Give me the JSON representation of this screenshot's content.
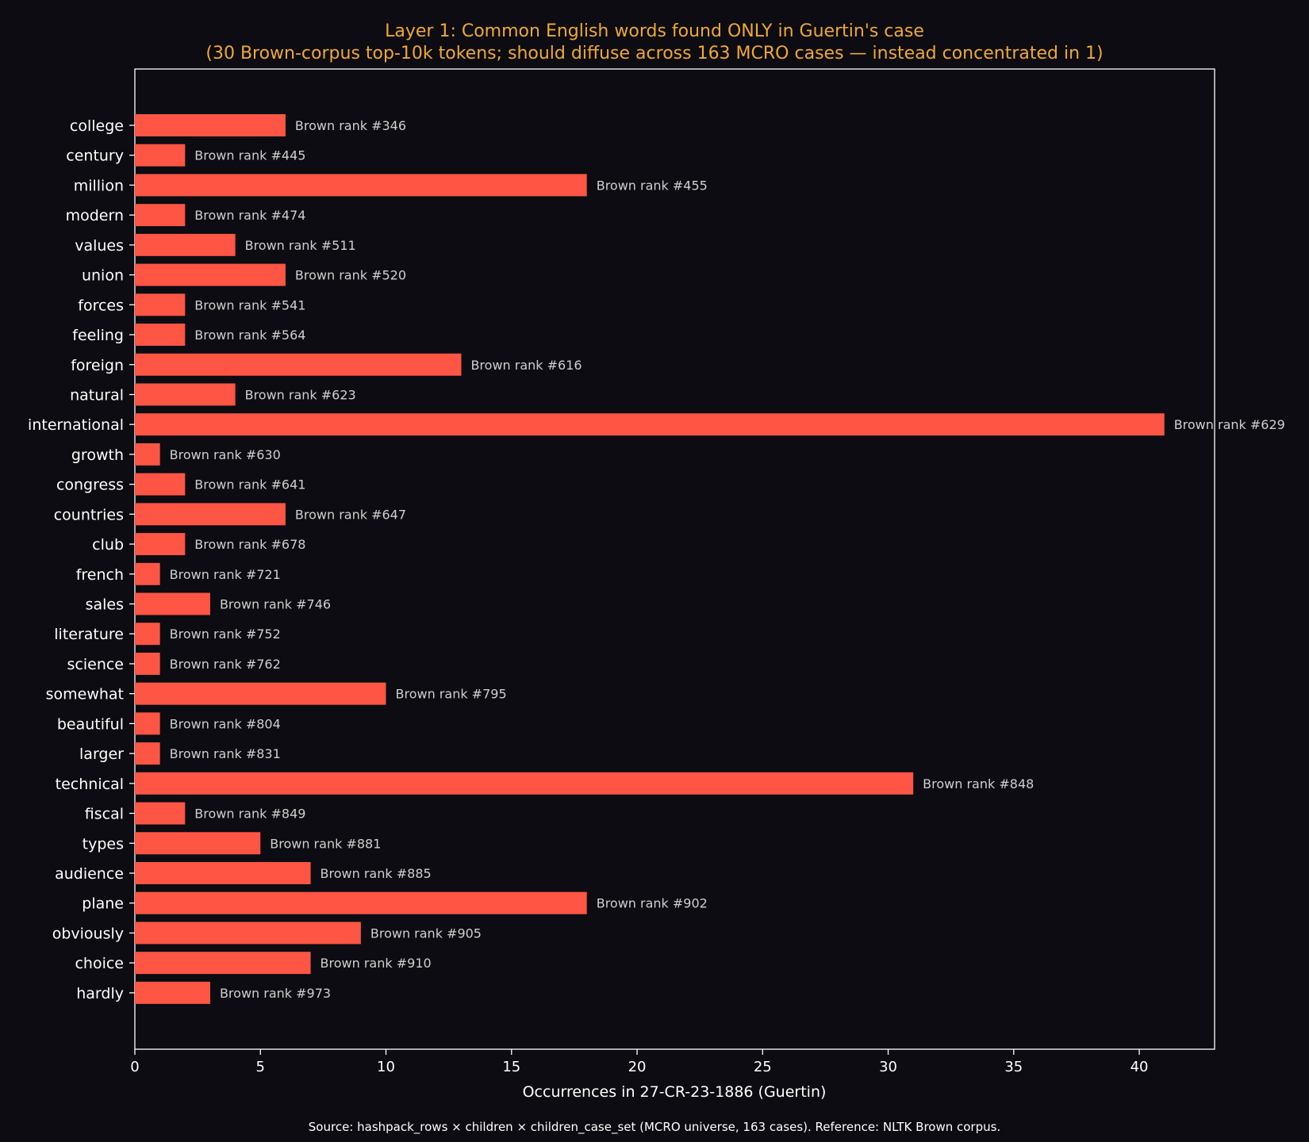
{
  "chart_data": {
    "type": "bar",
    "orientation": "horizontal",
    "title": "Layer 1: Common English words found ONLY in Guertin's case",
    "subtitle": "(30 Brown-corpus top-10k tokens; should diffuse across 163 MCRO cases — instead concentrated in 1)",
    "xlabel": "Occurrences in 27-CR-23-1886 (Guertin)",
    "ylabel": "",
    "xlim": [
      0,
      43
    ],
    "xticks": [
      0,
      5,
      10,
      15,
      20,
      25,
      30,
      35,
      40
    ],
    "grid": false,
    "categories": [
      "college",
      "century",
      "million",
      "modern",
      "values",
      "union",
      "forces",
      "feeling",
      "foreign",
      "natural",
      "international",
      "growth",
      "congress",
      "countries",
      "club",
      "french",
      "sales",
      "literature",
      "science",
      "somewhat",
      "beautiful",
      "larger",
      "technical",
      "fiscal",
      "types",
      "audience",
      "plane",
      "obviously",
      "choice",
      "hardly"
    ],
    "values": [
      6,
      2,
      18,
      2,
      4,
      6,
      2,
      2,
      13,
      4,
      41,
      1,
      2,
      6,
      2,
      1,
      3,
      1,
      1,
      10,
      1,
      1,
      31,
      2,
      5,
      7,
      18,
      9,
      7,
      3
    ],
    "annotations": [
      "Brown rank #346",
      "Brown rank #445",
      "Brown rank #455",
      "Brown rank #474",
      "Brown rank #511",
      "Brown rank #520",
      "Brown rank #541",
      "Brown rank #564",
      "Brown rank #616",
      "Brown rank #623",
      "Brown rank #629",
      "Brown rank #630",
      "Brown rank #641",
      "Brown rank #647",
      "Brown rank #678",
      "Brown rank #721",
      "Brown rank #746",
      "Brown rank #752",
      "Brown rank #762",
      "Brown rank #795",
      "Brown rank #804",
      "Brown rank #831",
      "Brown rank #848",
      "Brown rank #849",
      "Brown rank #881",
      "Brown rank #885",
      "Brown rank #902",
      "Brown rank #905",
      "Brown rank #910",
      "Brown rank #973"
    ],
    "bar_color": "#ff5544",
    "footer": "Source: hashpack_rows × children × children_case_set (MCRO universe, 163 cases). Reference: NLTK Brown corpus."
  },
  "colors": {
    "background": "#0c0c12",
    "title": "#f0a830",
    "text": "#ffffff",
    "annotation": "#cfcfcf",
    "bar": "#ff5544"
  }
}
